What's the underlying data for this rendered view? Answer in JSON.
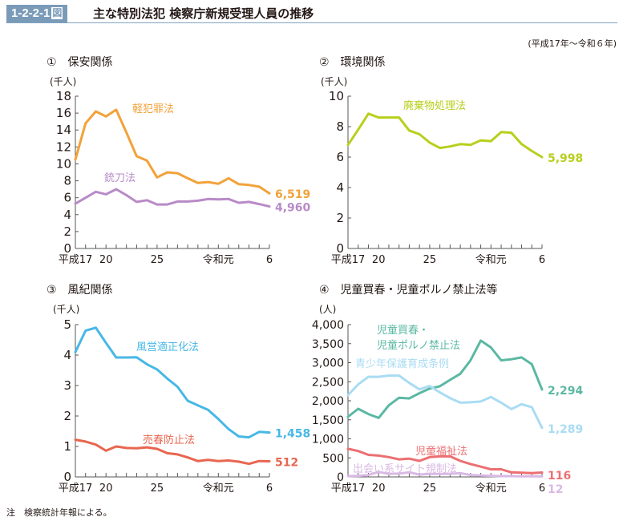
{
  "header": {
    "figure_number": "1-2-2-1",
    "figure_suffix": "図",
    "title": "主な特別法犯 検察庁新規受理人員の推移"
  },
  "period_note": "(平成17年～令和６年)",
  "footnote": "注　検察統計年報による。",
  "chart_data": [
    {
      "type": "line",
      "title": "①　保安関係",
      "ylabel": "(千人)",
      "xlabel": "",
      "ylim": [
        0,
        18
      ],
      "yticks": [
        0,
        2,
        4,
        6,
        8,
        10,
        12,
        14,
        16,
        18
      ],
      "ytick_labels": [
        "0",
        "2",
        "4",
        "6",
        "8",
        "10",
        "12",
        "14",
        "16",
        "18"
      ],
      "x": [
        "H17",
        "H18",
        "H19",
        "H20",
        "H21",
        "H22",
        "H23",
        "H24",
        "H25",
        "H26",
        "H27",
        "H28",
        "H29",
        "H30",
        "R1",
        "R2",
        "R3",
        "R4",
        "R5",
        "R6"
      ],
      "xtick_labels": [
        {
          "index": 0,
          "label": "平成17"
        },
        {
          "index": 3,
          "label": "20"
        },
        {
          "index": 8,
          "label": "25"
        },
        {
          "index": 14,
          "label": "令和元"
        },
        {
          "index": 19,
          "label": "6"
        }
      ],
      "grid": false,
      "series": [
        {
          "name": "軽犯罪法",
          "color": "#f2a23a",
          "end_label": "6,519",
          "label_pos": "top-center",
          "values": [
            10.5,
            14.8,
            16.2,
            15.6,
            16.4,
            13.7,
            10.9,
            10.4,
            8.4,
            9.0,
            8.9,
            8.3,
            7.75,
            7.85,
            7.65,
            8.3,
            7.6,
            7.5,
            7.3,
            6.519
          ]
        },
        {
          "name": "銃刀法",
          "color": "#b88bc7",
          "end_label": "4,960",
          "label_pos": "middle-left",
          "values": [
            5.3,
            6.0,
            6.7,
            6.4,
            7.0,
            6.3,
            5.5,
            5.7,
            5.2,
            5.2,
            5.55,
            5.55,
            5.65,
            5.85,
            5.8,
            5.85,
            5.4,
            5.5,
            5.25,
            4.96
          ]
        }
      ]
    },
    {
      "type": "line",
      "title": "②　環境関係",
      "ylabel": "(千人)",
      "xlabel": "",
      "ylim": [
        0,
        10
      ],
      "yticks": [
        0,
        2,
        4,
        6,
        8,
        10
      ],
      "ytick_labels": [
        "0",
        "2",
        "4",
        "6",
        "8",
        "10"
      ],
      "x": [
        "H17",
        "H18",
        "H19",
        "H20",
        "H21",
        "H22",
        "H23",
        "H24",
        "H25",
        "H26",
        "H27",
        "H28",
        "H29",
        "H30",
        "R1",
        "R2",
        "R3",
        "R4",
        "R5",
        "R6"
      ],
      "xtick_labels": [
        {
          "index": 0,
          "label": "平成17"
        },
        {
          "index": 3,
          "label": "20"
        },
        {
          "index": 8,
          "label": "25"
        },
        {
          "index": 14,
          "label": "令和元"
        },
        {
          "index": 19,
          "label": "6"
        }
      ],
      "grid": false,
      "series": [
        {
          "name": "廃棄物処理法",
          "color": "#b8cf1c",
          "end_label": "5,998",
          "label_pos": "top-center",
          "values": [
            6.8,
            7.8,
            8.85,
            8.6,
            8.6,
            8.6,
            7.75,
            7.5,
            6.95,
            6.6,
            6.7,
            6.85,
            6.8,
            7.1,
            7.05,
            7.65,
            7.6,
            6.85,
            6.4,
            5.998
          ]
        }
      ]
    },
    {
      "type": "line",
      "title": "③　風紀関係",
      "ylabel": "(千人)",
      "xlabel": "",
      "ylim": [
        0,
        5
      ],
      "yticks": [
        0,
        1,
        2,
        3,
        4,
        5
      ],
      "ytick_labels": [
        "0",
        "1",
        "2",
        "3",
        "4",
        "5"
      ],
      "x": [
        "H17",
        "H18",
        "H19",
        "H20",
        "H21",
        "H22",
        "H23",
        "H24",
        "H25",
        "H26",
        "H27",
        "H28",
        "H29",
        "H30",
        "R1",
        "R2",
        "R3",
        "R4",
        "R5",
        "R6"
      ],
      "xtick_labels": [
        {
          "index": 0,
          "label": "平成17"
        },
        {
          "index": 3,
          "label": "20"
        },
        {
          "index": 8,
          "label": "25"
        },
        {
          "index": 14,
          "label": "令和元"
        },
        {
          "index": 19,
          "label": "6"
        }
      ],
      "grid": false,
      "series": [
        {
          "name": "風営適正化法",
          "color": "#47b8e6",
          "end_label": "1,458",
          "label_pos": "top-center",
          "values": [
            4.1,
            4.8,
            4.9,
            4.4,
            3.92,
            3.92,
            3.93,
            3.7,
            3.53,
            3.23,
            2.96,
            2.5,
            2.35,
            2.2,
            1.9,
            1.57,
            1.33,
            1.3,
            1.48,
            1.458
          ]
        },
        {
          "name": "売春防止法",
          "color": "#e8664f",
          "end_label": "512",
          "label_pos": "middle-center",
          "values": [
            1.22,
            1.16,
            1.06,
            0.86,
            1.0,
            0.95,
            0.94,
            0.97,
            0.92,
            0.78,
            0.74,
            0.64,
            0.52,
            0.56,
            0.52,
            0.54,
            0.5,
            0.43,
            0.52,
            0.512
          ]
        }
      ]
    },
    {
      "type": "line",
      "title": "④　児童買春・児童ポルノ禁止法等",
      "ylabel": "(人)",
      "xlabel": "",
      "ylim": [
        0,
        4000
      ],
      "yticks": [
        0,
        500,
        1000,
        1500,
        2000,
        2500,
        3000,
        3500,
        4000
      ],
      "ytick_labels": [
        "0",
        "500",
        "1,000",
        "1,500",
        "2,000",
        "2,500",
        "3,000",
        "3,500",
        "4,000"
      ],
      "x": [
        "H17",
        "H18",
        "H19",
        "H20",
        "H21",
        "H22",
        "H23",
        "H24",
        "H25",
        "H26",
        "H27",
        "H28",
        "H29",
        "H30",
        "R1",
        "R2",
        "R3",
        "R4",
        "R5",
        "R6"
      ],
      "xtick_labels": [
        {
          "index": 0,
          "label": "平成17"
        },
        {
          "index": 3,
          "label": "20"
        },
        {
          "index": 8,
          "label": "25"
        },
        {
          "index": 14,
          "label": "令和元"
        },
        {
          "index": 19,
          "label": "6"
        }
      ],
      "grid": false,
      "series": [
        {
          "name": "児童買春・\n児童ポルノ禁止法",
          "color": "#5bb8a3",
          "end_label": "2,294",
          "label_pos": "top-left",
          "values": [
            1580,
            1790,
            1650,
            1550,
            1880,
            2080,
            2060,
            2200,
            2320,
            2380,
            2550,
            2710,
            3060,
            3580,
            3400,
            3060,
            3090,
            3140,
            2960,
            2294
          ]
        },
        {
          "name": "青少年保護育成条例",
          "color": "#a9dcf3",
          "end_label": "1,289",
          "label_pos": "upper-left",
          "values": [
            2150,
            2430,
            2630,
            2630,
            2660,
            2660,
            2470,
            2300,
            2390,
            2220,
            2070,
            1950,
            1960,
            1980,
            2100,
            1950,
            1780,
            1910,
            1830,
            1289
          ]
        },
        {
          "name": "児童福祉法",
          "color": "#ec6f72",
          "end_label": "116",
          "label_pos": "lower-center",
          "values": [
            740,
            680,
            580,
            560,
            520,
            460,
            480,
            420,
            520,
            540,
            540,
            420,
            340,
            270,
            200,
            200,
            120,
            110,
            100,
            116
          ]
        },
        {
          "name": "出会い系サイト規制法",
          "color": "#d9b9e4",
          "end_label": "12",
          "label_pos": "bottom-left",
          "values": [
            20,
            30,
            50,
            130,
            80,
            90,
            120,
            60,
            80,
            80,
            80,
            100,
            50,
            40,
            30,
            20,
            20,
            15,
            15,
            12
          ]
        }
      ]
    }
  ]
}
